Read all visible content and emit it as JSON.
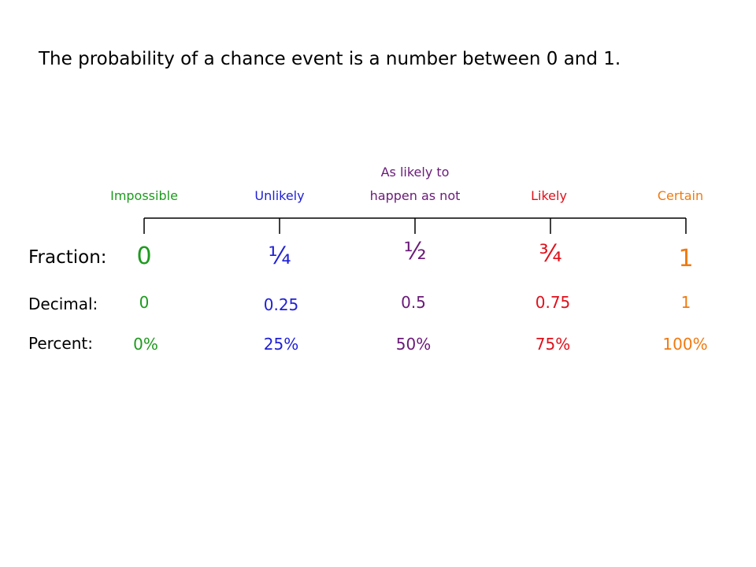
{
  "title": "The probability of a chance event is a number between 0 and 1.",
  "colors": {
    "impossible": "#1e9a1e",
    "unlikely": "#1f1fd6",
    "even": "#6a1a78",
    "likely": "#e0101a",
    "certain": "#f07a10",
    "axis": "#000000"
  },
  "likelihood": {
    "impossible": "Impossible",
    "unlikely": "Unlikely",
    "even_line1": "As likely to",
    "even_line2": "happen as not",
    "likely": "Likely",
    "certain": "Certain"
  },
  "rows": {
    "fraction_label": "Fraction:",
    "decimal_label": "Decimal:",
    "percent_label": "Percent:"
  },
  "fractions": [
    "0",
    "¼",
    "½",
    "¾",
    "1"
  ],
  "decimals": [
    "0",
    "0.25",
    "0.5",
    "0.75",
    "1"
  ],
  "percents": [
    "0%",
    "25%",
    "50%",
    "75%",
    "100%"
  ]
}
